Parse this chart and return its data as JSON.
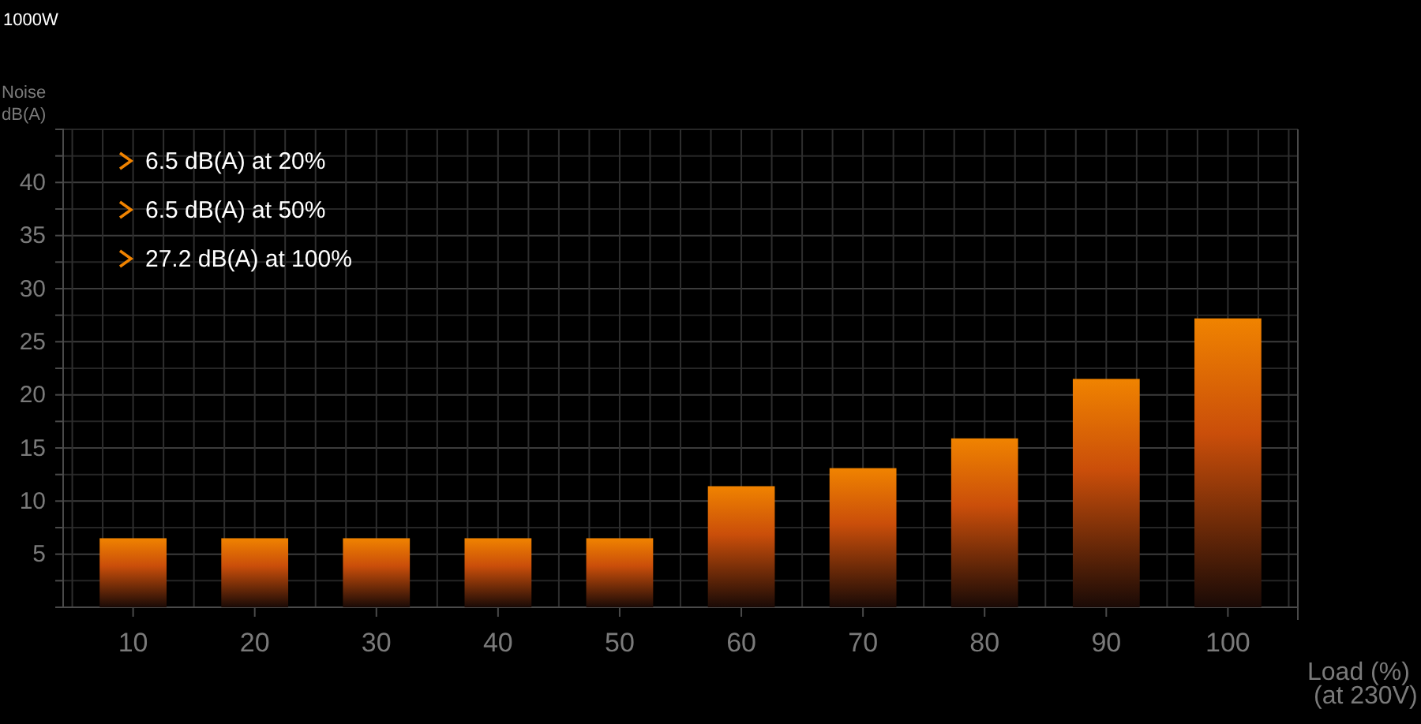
{
  "chart_data": {
    "type": "bar",
    "subtitle": "1000W",
    "ylabel": "Noise\ndB(A)",
    "xlabel": "Load (%)\n(at 230V)",
    "categories": [
      "10",
      "20",
      "30",
      "40",
      "50",
      "60",
      "70",
      "80",
      "90",
      "100"
    ],
    "values": [
      6.5,
      6.5,
      6.5,
      6.5,
      6.5,
      11.4,
      13.1,
      15.9,
      21.5,
      27.2
    ],
    "color": "#f08300",
    "ylim": [
      0,
      45
    ],
    "yticks": [
      {
        "value": 0,
        "label": null
      },
      {
        "value": 2.5,
        "label": null
      },
      5,
      {
        "value": 7.5,
        "label": null
      },
      10,
      {
        "value": 12.5,
        "label": null
      },
      15,
      {
        "value": 17.5,
        "label": null
      },
      20,
      {
        "value": 22.5,
        "label": null
      },
      25,
      {
        "value": 27.5,
        "label": null
      },
      30,
      {
        "value": 32.5,
        "label": null
      },
      35,
      {
        "value": 37.5,
        "label": null
      },
      40,
      {
        "value": 42.5,
        "label": null
      },
      {
        "value": 45,
        "label": null
      }
    ],
    "grid": true,
    "annotations": [
      "6.5 dB(A) at 20%",
      "6.5 dB(A) at 50%",
      "27.2 dB(A) at 100%"
    ]
  }
}
